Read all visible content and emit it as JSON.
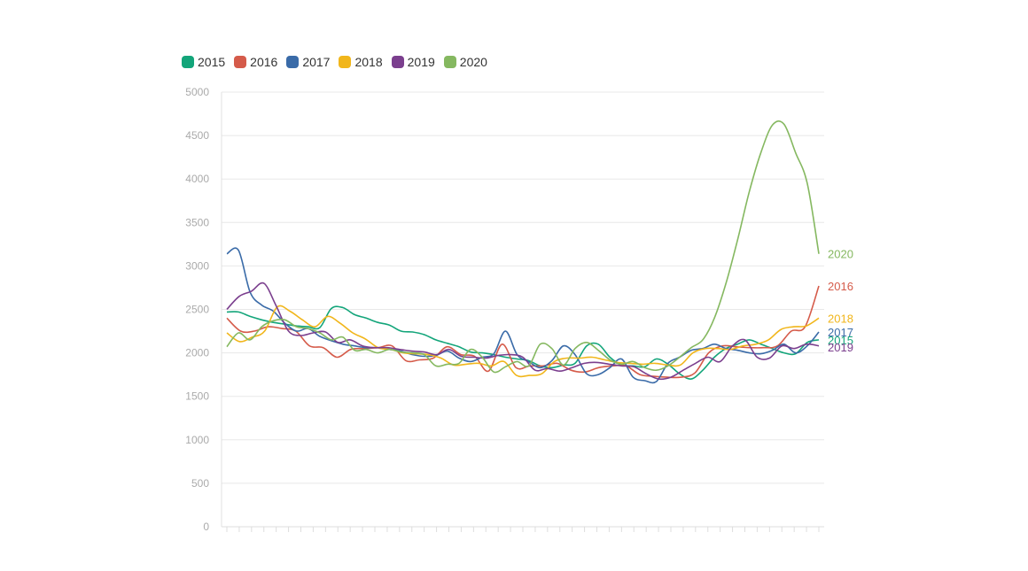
{
  "chart_data": {
    "type": "line",
    "title": "",
    "xlabel": "",
    "ylabel": "",
    "ylim": [
      0,
      5000
    ],
    "y_ticks": [
      0,
      500,
      1000,
      1500,
      2000,
      2500,
      3000,
      3500,
      4000,
      4500,
      5000
    ],
    "grid": "horizontal",
    "legend_placement": "top-left",
    "point_count": 52,
    "series": [
      {
        "name": "2015",
        "color": "#13a57a",
        "values": [
          2470,
          2470,
          2420,
          2380,
          2350,
          2330,
          2310,
          2300,
          2290,
          2510,
          2520,
          2440,
          2400,
          2350,
          2320,
          2250,
          2240,
          2210,
          2150,
          2110,
          2070,
          2010,
          2000,
          1980,
          1950,
          1930,
          1910,
          1850,
          1830,
          1860,
          1880,
          2080,
          2100,
          1950,
          1860,
          1850,
          1840,
          1930,
          1870,
          1760,
          1700,
          1800,
          1950,
          2050,
          2100,
          2150,
          2100,
          2050,
          2000,
          1990,
          2120,
          2150
        ]
      },
      {
        "name": "2016",
        "color": "#d55b4a",
        "values": [
          2400,
          2250,
          2250,
          2300,
          2280,
          2250,
          2080,
          2060,
          1950,
          2040,
          2050,
          2060,
          2080,
          1910,
          1920,
          1940,
          2070,
          1980,
          1960,
          1790,
          2100,
          1830,
          1850,
          1850,
          1880,
          1800,
          1780,
          1830,
          1850,
          1850,
          1750,
          1730,
          1720,
          1720,
          1770,
          2000,
          2080,
          2070,
          2060,
          2060,
          2080,
          2250,
          2300,
          2770
        ]
      },
      {
        "name": "2017",
        "color": "#3a6ba8",
        "values": [
          3140,
          3180,
          2700,
          2550,
          2480,
          2340,
          2250,
          2280,
          2190,
          2140,
          2100,
          2080,
          2060,
          2060,
          2040,
          2020,
          1980,
          1960,
          1970,
          2020,
          1940,
          1900,
          1950,
          1990,
          2250,
          1980,
          1900,
          1830,
          1910,
          2080,
          1980,
          1760,
          1750,
          1830,
          1930,
          1720,
          1680,
          1670,
          1880,
          1950,
          2030,
          2050,
          2100,
          2050,
          2030,
          2000,
          1990,
          2030,
          2100,
          2000,
          2080,
          2240
        ]
      },
      {
        "name": "2018",
        "color": "#f1b61b",
        "values": [
          2230,
          2130,
          2180,
          2250,
          2530,
          2480,
          2380,
          2300,
          2420,
          2340,
          2230,
          2160,
          2060,
          2040,
          2000,
          1990,
          1980,
          1940,
          1860,
          1870,
          1880,
          1850,
          1900,
          1740,
          1740,
          1760,
          1900,
          1940,
          1940,
          1950,
          1920,
          1890,
          1880,
          1870,
          1880,
          1860,
          1860,
          2000,
          2050,
          2050,
          2040,
          2080,
          2100,
          2150,
          2270,
          2300,
          2310,
          2400
        ]
      },
      {
        "name": "2019",
        "color": "#7b3f8e",
        "values": [
          2500,
          2650,
          2710,
          2800,
          2540,
          2250,
          2200,
          2230,
          2240,
          2120,
          2150,
          2080,
          2060,
          2060,
          2040,
          2020,
          2010,
          1980,
          2040,
          1960,
          1950,
          1940,
          1970,
          1980,
          1950,
          1800,
          1820,
          1790,
          1830,
          1880,
          1890,
          1870,
          1850,
          1840,
          1760,
          1700,
          1720,
          1800,
          1880,
          1950,
          1900,
          2080,
          2150,
          1950,
          1940,
          2080,
          2050,
          2100,
          2080
        ]
      },
      {
        "name": "2020",
        "color": "#85b860",
        "values": [
          2070,
          2230,
          2150,
          2300,
          2370,
          2380,
          2300,
          2280,
          2230,
          2150,
          2180,
          2030,
          2040,
          2000,
          2040,
          2010,
          2000,
          1980,
          1850,
          1870,
          1880,
          2040,
          1950,
          1780,
          1840,
          1900,
          1850,
          2100,
          2050,
          1860,
          2050,
          2120,
          2030,
          1920,
          1870,
          1900,
          1830,
          1800,
          1850,
          1950,
          2060,
          2150,
          2400,
          2800,
          3300,
          3850,
          4300,
          4620,
          4630,
          4300,
          3950,
          3140
        ]
      }
    ]
  }
}
